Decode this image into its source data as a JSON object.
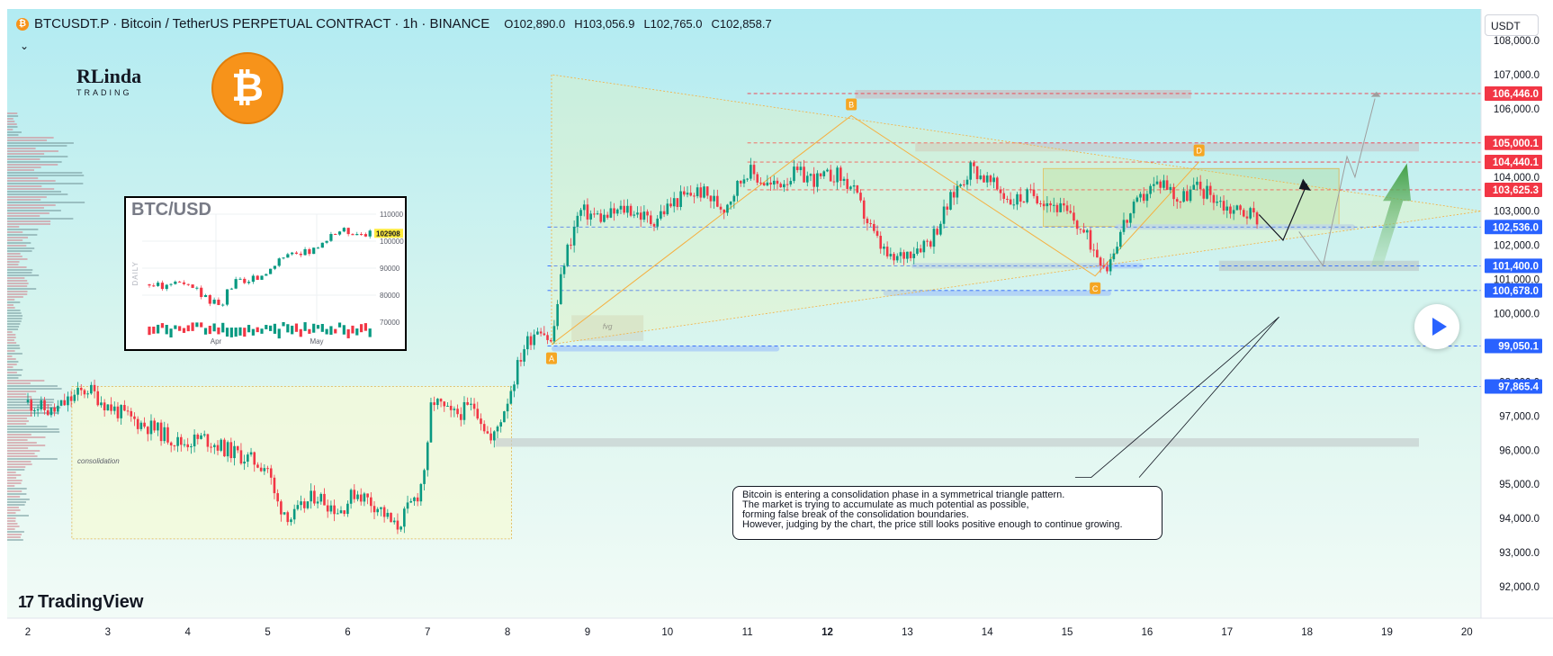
{
  "header": {
    "symbol": "BTCUSDT.P · Bitcoin / TetherUS PERPETUAL CONTRACT · 1h · BINANCE",
    "open": "O102,890.0",
    "high": "H103,056.9",
    "low": "L102,765.0",
    "close": "C102,858.7",
    "coin_glyph": "₿",
    "chevron": "⌄"
  },
  "currency": "USDT",
  "branding": {
    "linda_big": "RLinda",
    "linda_small": "TRADING",
    "tradingview": "TradingView",
    "btc_symbol": "₿"
  },
  "inset": {
    "title": "BTC/USD",
    "axis_label": "DAILY",
    "price_ticks": [
      "110000",
      "100000",
      "90000",
      "80000",
      "70000"
    ],
    "last_price": "102908",
    "months": [
      "Apr",
      "May"
    ]
  },
  "note": {
    "lines": [
      "Bitcoin is entering a consolidation phase in a symmetrical triangle pattern.",
      "The market is trying to accumulate as much potential as possible,",
      "forming false break of the consolidation boundaries.",
      "However, judging by the chart, the price still looks positive enough to continue growing."
    ]
  },
  "annotations": {
    "consolidation": "consolidation",
    "fvg": "fvg",
    "points": [
      "A",
      "B",
      "C",
      "D"
    ]
  },
  "colors": {
    "up": "#089981",
    "down": "#f23645",
    "support_fill": "#b3d4f5",
    "level_red": "#f23645",
    "level_blue": "#2962ff",
    "triangle": "#f5b041",
    "bg_top": "#b2ebf2",
    "bg_bottom": "#eafaf4",
    "projection_arrow": "#66bb6a",
    "bitcoin_orange": "#f7931a"
  },
  "chart_data": {
    "type": "candlestick",
    "title": "BTCUSDT.P · Bitcoin / TetherUS PERPETUAL CONTRACT · 1h · BINANCE",
    "x_ticks": [
      "2",
      "3",
      "4",
      "5",
      "6",
      "7",
      "8",
      "9",
      "10",
      "11",
      "12",
      "13",
      "14",
      "15",
      "16",
      "17",
      "18",
      "19",
      "20"
    ],
    "y_ticks": [
      "108,000.0",
      "107,000.0",
      "106,000.0",
      "105,000.0",
      "104,000.0",
      "103,000.0",
      "102,000.0",
      "101,000.0",
      "100,000.0",
      "99,000.0",
      "98,000.0",
      "97,000.0",
      "96,000.0",
      "95,000.0",
      "94,000.0",
      "93,000.0",
      "92,000.0"
    ],
    "ylim": [
      91500,
      108300
    ],
    "levels": [
      {
        "label": "106,446.0",
        "value": 106446,
        "color": "red"
      },
      {
        "label": "105,000.1",
        "value": 105000.1,
        "color": "red"
      },
      {
        "label": "104,440.1",
        "value": 104440.1,
        "color": "red"
      },
      {
        "label": "103,625.3",
        "value": 103625.3,
        "color": "red"
      },
      {
        "label": "102,536.0",
        "value": 102536,
        "color": "blue"
      },
      {
        "label": "101,400.0",
        "value": 101400,
        "color": "blue"
      },
      {
        "label": "100,678.0",
        "value": 100678,
        "color": "blue"
      },
      {
        "label": "99,050.1",
        "value": 99050.1,
        "color": "blue"
      },
      {
        "label": "97,865.4",
        "value": 97865.4,
        "color": "blue"
      }
    ],
    "price_path": [
      [
        2.0,
        97400
      ],
      [
        2.3,
        97100
      ],
      [
        2.6,
        97600
      ],
      [
        2.75,
        97800
      ],
      [
        3.0,
        97300
      ],
      [
        3.3,
        96900
      ],
      [
        3.6,
        96600
      ],
      [
        3.9,
        96200
      ],
      [
        4.2,
        96350
      ],
      [
        4.5,
        96000
      ],
      [
        4.8,
        95700
      ],
      [
        5.0,
        95500
      ],
      [
        5.1,
        94500
      ],
      [
        5.3,
        94000
      ],
      [
        5.6,
        94700
      ],
      [
        5.9,
        94200
      ],
      [
        6.1,
        94800
      ],
      [
        6.4,
        94300
      ],
      [
        6.6,
        93700
      ],
      [
        6.9,
        94800
      ],
      [
        7.0,
        96000
      ],
      [
        7.05,
        97500
      ],
      [
        7.3,
        97000
      ],
      [
        7.6,
        97300
      ],
      [
        7.8,
        96200
      ],
      [
        8.0,
        97500
      ],
      [
        8.2,
        99000
      ],
      [
        8.4,
        99700
      ],
      [
        8.55,
        99100
      ],
      [
        8.7,
        101500
      ],
      [
        8.9,
        103000
      ],
      [
        9.2,
        102800
      ],
      [
        9.5,
        103100
      ],
      [
        9.8,
        102700
      ],
      [
        10.1,
        103300
      ],
      [
        10.4,
        103600
      ],
      [
        10.7,
        103100
      ],
      [
        11.0,
        104200
      ],
      [
        11.3,
        103700
      ],
      [
        11.6,
        104100
      ],
      [
        11.9,
        103900
      ],
      [
        12.1,
        104100
      ],
      [
        12.3,
        103700
      ],
      [
        12.6,
        102200
      ],
      [
        12.8,
        101500
      ],
      [
        13.0,
        101800
      ],
      [
        13.3,
        102200
      ],
      [
        13.6,
        103600
      ],
      [
        13.8,
        104300
      ],
      [
        14.0,
        103900
      ],
      [
        14.3,
        103300
      ],
      [
        14.6,
        103500
      ],
      [
        14.9,
        103100
      ],
      [
        15.1,
        102700
      ],
      [
        15.4,
        101700
      ],
      [
        15.5,
        101400
      ],
      [
        15.7,
        102600
      ],
      [
        16.0,
        103600
      ],
      [
        16.2,
        103900
      ],
      [
        16.4,
        103300
      ],
      [
        16.6,
        103700
      ],
      [
        16.8,
        103500
      ],
      [
        17.0,
        103100
      ],
      [
        17.2,
        103000
      ],
      [
        17.4,
        102800
      ]
    ],
    "volume_profile": "left-edge horizontal volume histogram",
    "inset_series": {
      "name": "BTC/USD daily",
      "values": [
        84000,
        83500,
        84500,
        85000,
        83000,
        82000,
        80000,
        78000,
        76000,
        83000,
        85000,
        84500,
        86000,
        88000,
        91000,
        94000,
        95000,
        94500,
        96000,
        97000,
        99000,
        103000,
        104000,
        103500,
        103000,
        102908
      ],
      "ylim": [
        70000,
        110000
      ]
    }
  }
}
